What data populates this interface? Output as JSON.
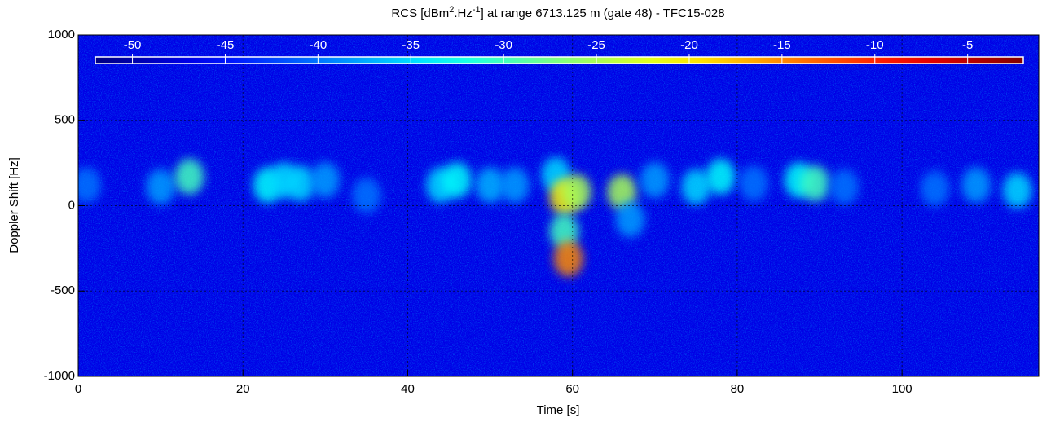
{
  "chart_data": {
    "type": "spectrogram",
    "title": [
      "RCS [dBm",
      "2",
      ".Hz",
      "-1",
      "] at range 6713.125 m (gate 48) - TFC15-028"
    ],
    "xlabel": "Time [s]",
    "ylabel": "Doppler Shift [Hz]",
    "xlim": [
      0,
      116.6
    ],
    "xticks": [
      0,
      20,
      40,
      60,
      80,
      100
    ],
    "ylim": [
      -1000,
      1000
    ],
    "yticks": [
      -1000,
      -500,
      0,
      500,
      1000
    ],
    "grid": true,
    "colormap": "jet",
    "clim": [
      -52,
      -2
    ],
    "cticks": [
      -50,
      -45,
      -40,
      -35,
      -30,
      -25,
      -20,
      -15,
      -10,
      -5
    ],
    "background": -47,
    "echoes": [
      {
        "time": 1,
        "doppler": 120,
        "rcs": -40
      },
      {
        "time": 10,
        "doppler": 110,
        "rcs": -38
      },
      {
        "time": 13.5,
        "doppler": 170,
        "rcs": -30
      },
      {
        "time": 23,
        "doppler": 120,
        "rcs": -33
      },
      {
        "time": 25,
        "doppler": 150,
        "rcs": -35
      },
      {
        "time": 27,
        "doppler": 130,
        "rcs": -35
      },
      {
        "time": 30,
        "doppler": 150,
        "rcs": -38
      },
      {
        "time": 35,
        "doppler": 60,
        "rcs": -40
      },
      {
        "time": 44,
        "doppler": 120,
        "rcs": -35
      },
      {
        "time": 46,
        "doppler": 150,
        "rcs": -33
      },
      {
        "time": 50,
        "doppler": 120,
        "rcs": -37
      },
      {
        "time": 53,
        "doppler": 120,
        "rcs": -38
      },
      {
        "time": 58,
        "doppler": 180,
        "rcs": -35
      },
      {
        "time": 59,
        "doppler": 50,
        "rcs": -20
      },
      {
        "time": 59,
        "doppler": -150,
        "rcs": -30
      },
      {
        "time": 59.5,
        "doppler": -310,
        "rcs": -15
      },
      {
        "time": 60.5,
        "doppler": 80,
        "rcs": -25
      },
      {
        "time": 66,
        "doppler": 80,
        "rcs": -25
      },
      {
        "time": 67,
        "doppler": -80,
        "rcs": -38
      },
      {
        "time": 70,
        "doppler": 150,
        "rcs": -38
      },
      {
        "time": 75,
        "doppler": 110,
        "rcs": -35
      },
      {
        "time": 78,
        "doppler": 170,
        "rcs": -33
      },
      {
        "time": 82,
        "doppler": 130,
        "rcs": -40
      },
      {
        "time": 87.5,
        "doppler": 150,
        "rcs": -33
      },
      {
        "time": 89.5,
        "doppler": 130,
        "rcs": -30
      },
      {
        "time": 93,
        "doppler": 110,
        "rcs": -40
      },
      {
        "time": 104,
        "doppler": 100,
        "rcs": -40
      },
      {
        "time": 109,
        "doppler": 120,
        "rcs": -38
      },
      {
        "time": 114,
        "doppler": 90,
        "rcs": -35
      }
    ]
  }
}
